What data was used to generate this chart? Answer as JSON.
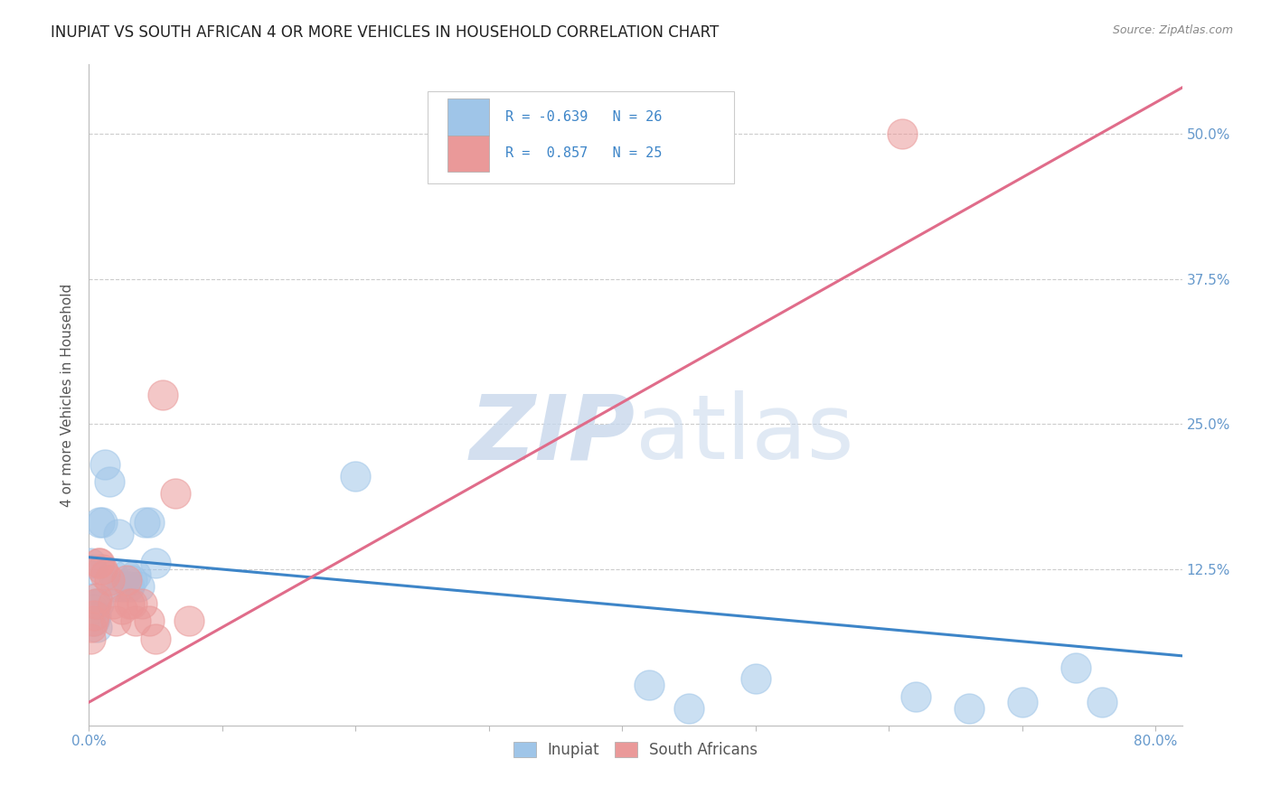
{
  "title": "INUPIAT VS SOUTH AFRICAN 4 OR MORE VEHICLES IN HOUSEHOLD CORRELATION CHART",
  "source": "Source: ZipAtlas.com",
  "ylabel": "4 or more Vehicles in Household",
  "legend_label_blue": "Inupiat",
  "legend_label_pink": "South Africans",
  "watermark_zip": "ZIP",
  "watermark_atlas": "atlas",
  "xlim": [
    0.0,
    0.82
  ],
  "ylim": [
    -0.01,
    0.56
  ],
  "x_ticks": [
    0.0,
    0.1,
    0.2,
    0.3,
    0.4,
    0.5,
    0.6,
    0.7,
    0.8
  ],
  "x_tick_labels": [
    "0.0%",
    "",
    "",
    "",
    "",
    "",
    "",
    "",
    "80.0%"
  ],
  "y_ticks": [
    0.0,
    0.125,
    0.25,
    0.375,
    0.5
  ],
  "y_tick_labels": [
    "",
    "12.5%",
    "25.0%",
    "37.5%",
    "50.0%"
  ],
  "blue_scatter_x": [
    0.001,
    0.002,
    0.003,
    0.003,
    0.004,
    0.005,
    0.005,
    0.006,
    0.007,
    0.008,
    0.01,
    0.012,
    0.015,
    0.018,
    0.02,
    0.022,
    0.025,
    0.028,
    0.03,
    0.032,
    0.035,
    0.038,
    0.042,
    0.045,
    0.05,
    0.2,
    0.42,
    0.45,
    0.5,
    0.62,
    0.66,
    0.7,
    0.74,
    0.76
  ],
  "blue_scatter_y": [
    0.13,
    0.125,
    0.1,
    0.09,
    0.08,
    0.095,
    0.085,
    0.075,
    0.095,
    0.165,
    0.165,
    0.215,
    0.2,
    0.12,
    0.11,
    0.155,
    0.11,
    0.12,
    0.11,
    0.115,
    0.12,
    0.11,
    0.165,
    0.165,
    0.13,
    0.205,
    0.025,
    0.005,
    0.03,
    0.015,
    0.005,
    0.01,
    0.04,
    0.01
  ],
  "pink_scatter_x": [
    0.001,
    0.002,
    0.003,
    0.004,
    0.005,
    0.006,
    0.007,
    0.008,
    0.01,
    0.012,
    0.015,
    0.018,
    0.02,
    0.025,
    0.028,
    0.03,
    0.032,
    0.035,
    0.04,
    0.045,
    0.05,
    0.055,
    0.065,
    0.075,
    0.61
  ],
  "pink_scatter_y": [
    0.065,
    0.075,
    0.08,
    0.085,
    0.095,
    0.1,
    0.13,
    0.13,
    0.125,
    0.12,
    0.115,
    0.095,
    0.08,
    0.09,
    0.115,
    0.095,
    0.095,
    0.08,
    0.095,
    0.08,
    0.065,
    0.275,
    0.19,
    0.08,
    0.5
  ],
  "blue_line_x": [
    0.0,
    0.82
  ],
  "blue_line_y": [
    0.135,
    0.05
  ],
  "pink_line_x": [
    0.0,
    0.82
  ],
  "pink_line_y": [
    0.01,
    0.54
  ],
  "blue_color": "#9fc5e8",
  "pink_color": "#ea9999",
  "blue_line_color": "#3d85c8",
  "pink_line_color": "#e06c8a",
  "grid_color": "#cccccc",
  "background_color": "#ffffff",
  "title_color": "#222222",
  "axis_label_color": "#555555",
  "tick_color": "#6699cc",
  "marker_size": 9,
  "marker_alpha": 0.55
}
